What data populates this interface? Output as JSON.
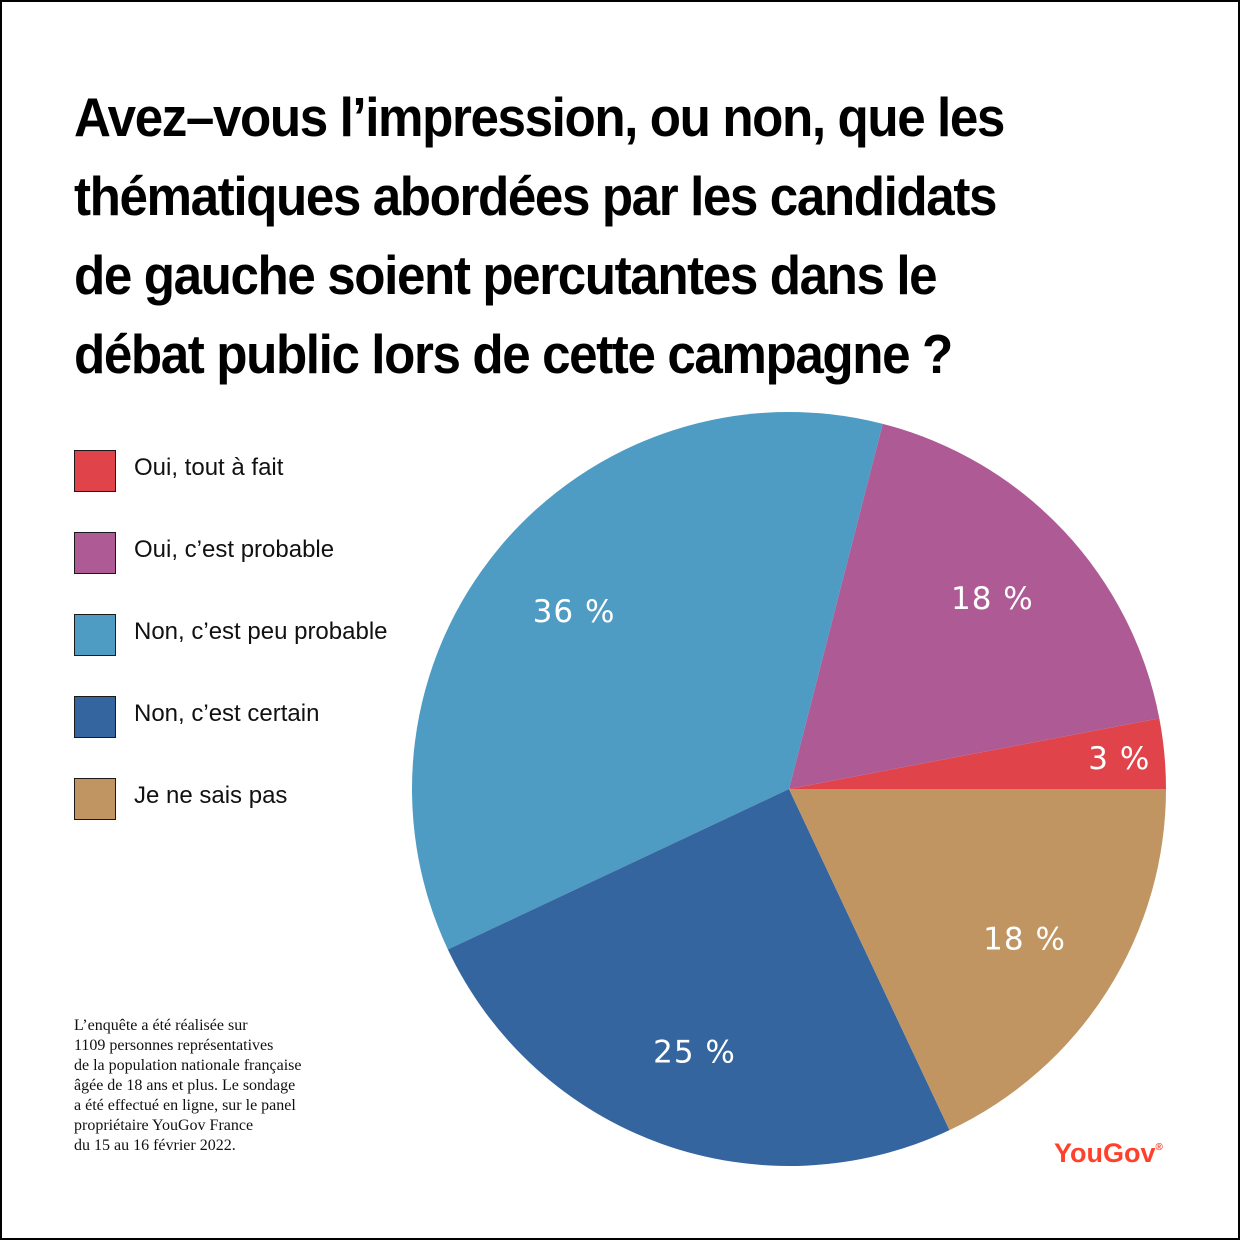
{
  "title_lines": [
    "Avez–vous l’impression, ou non, que les",
    "thématiques abordées par les candidats",
    "de gauche soient percutantes dans le",
    "débat public lors de cette campagne ?"
  ],
  "chart_data": {
    "type": "pie",
    "title": "Avez–vous l’impression, ou non, que les thématiques abordées par les candidats de gauche soient percutantes dans le débat public lors de cette campagne ?",
    "slices": [
      {
        "label": "Oui, tout à fait",
        "value": 3,
        "value_label": "3 %",
        "color": "#e0434a"
      },
      {
        "label": "Oui, c’est probable",
        "value": 18,
        "value_label": "18 %",
        "color": "#ae5a94"
      },
      {
        "label": "Non, c’est peu probable",
        "value": 36,
        "value_label": "36 %",
        "color": "#4e9bc3"
      },
      {
        "label": "Non, c’est certain",
        "value": 25,
        "value_label": "25 %",
        "color": "#34659f"
      },
      {
        "label": "Je ne sais pas",
        "value": 18,
        "value_label": "18 %",
        "color": "#c09562"
      }
    ],
    "legend_position": "left"
  },
  "footnote_lines": [
    "L’enquête a été réalisée sur",
    "1109 personnes représentatives",
    "de la population nationale française",
    "âgée de 18 ans et plus. Le sondage",
    "a été effectué en ligne, sur le panel",
    "propriétaire YouGov France",
    "du 15 au 16 février 2022."
  ],
  "brand": {
    "name": "YouGov",
    "mark": "®"
  }
}
